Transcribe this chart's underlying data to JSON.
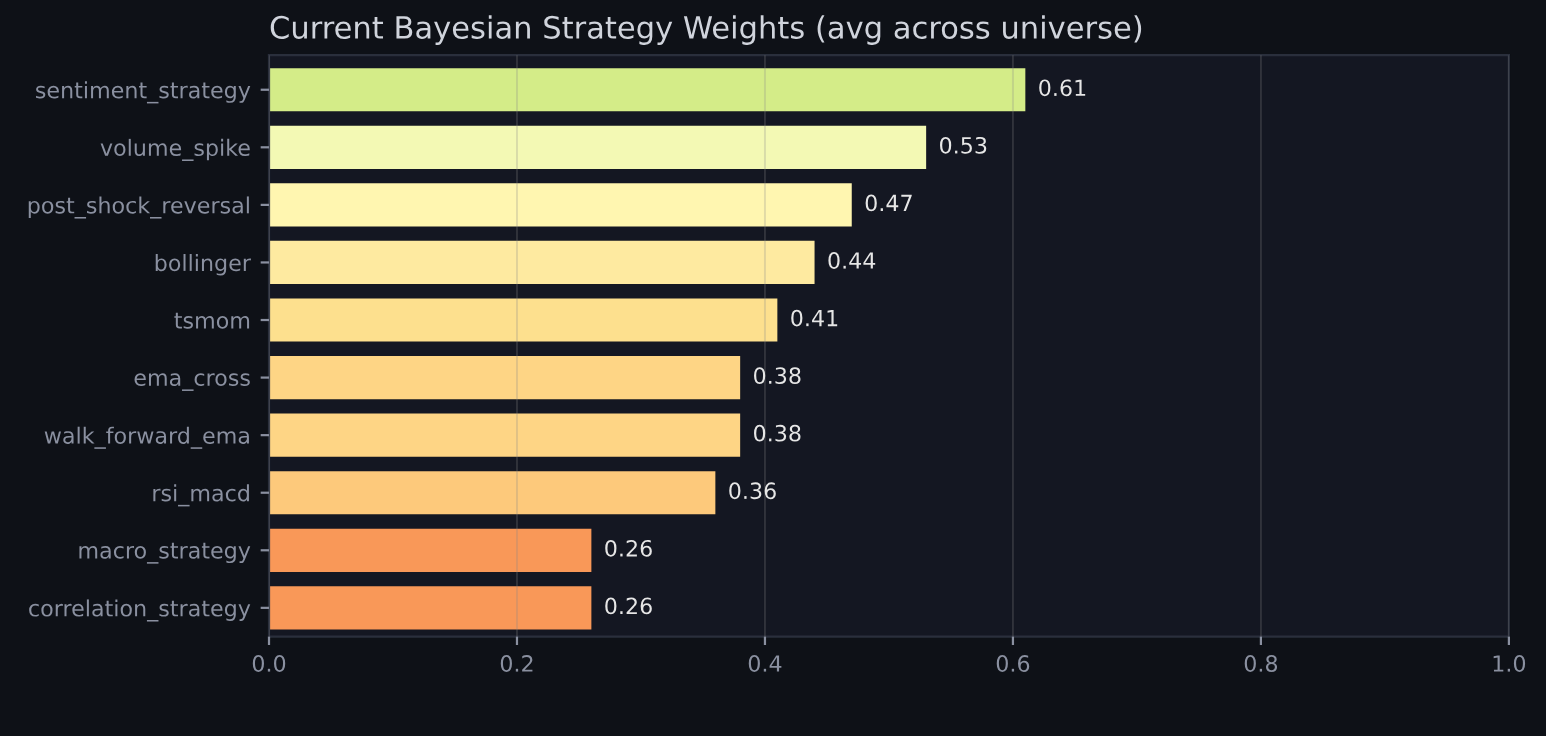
{
  "chart_data": {
    "type": "bar",
    "orientation": "horizontal",
    "title": "Current Bayesian Strategy Weights (avg across universe)",
    "categories": [
      "sentiment_strategy",
      "volume_spike",
      "post_shock_reversal",
      "bollinger",
      "tsmom",
      "ema_cross",
      "walk_forward_ema",
      "rsi_macd",
      "macro_strategy",
      "correlation_strategy"
    ],
    "values": [
      0.61,
      0.53,
      0.47,
      0.44,
      0.41,
      0.38,
      0.38,
      0.36,
      0.26,
      0.26
    ],
    "colors": [
      "#d4ec88",
      "#f3f9b4",
      "#fff6b0",
      "#feeaa0",
      "#fde08e",
      "#fed585",
      "#fed585",
      "#fdc97b",
      "#f99858",
      "#f99858"
    ],
    "xlim": [
      0.0,
      1.0
    ],
    "xticks": [
      {
        "value": 0,
        "label": "0.0"
      },
      0.2,
      0.4,
      0.6,
      0.8,
      {
        "value": 1,
        "label": "1.0"
      }
    ],
    "grid": "x",
    "data_labels": true,
    "legend": false
  }
}
